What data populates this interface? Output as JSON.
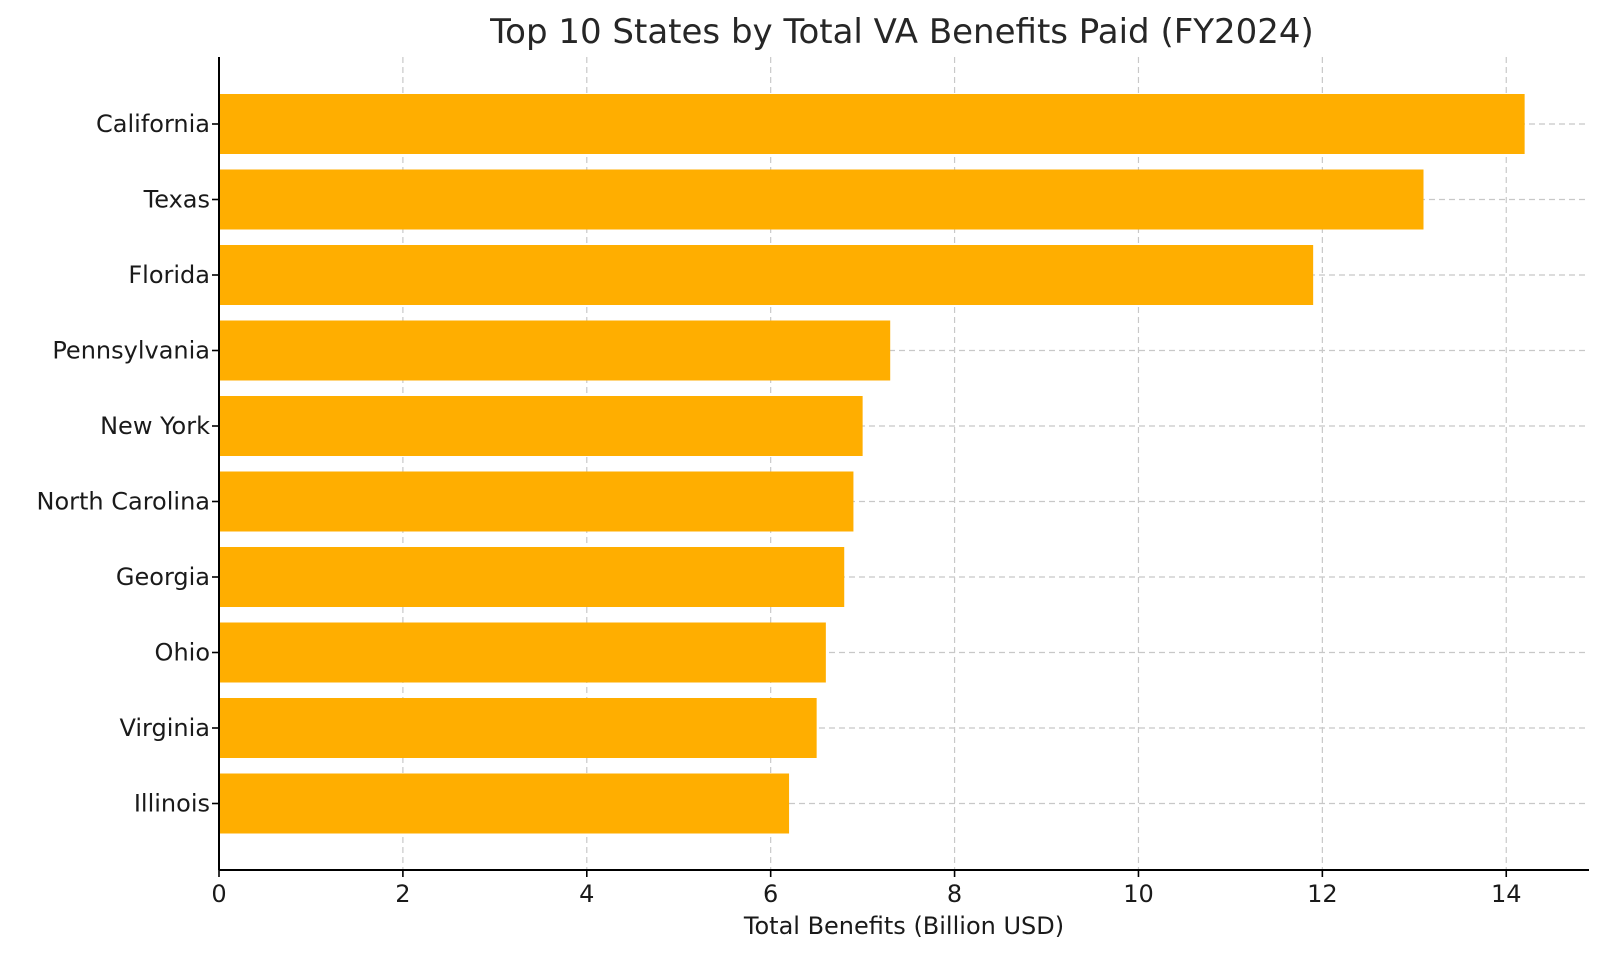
{
  "chart_data": {
    "type": "bar",
    "orientation": "horizontal",
    "title": "Top 10 States by Total VA Benefits Paid (FY2024)",
    "xlabel": "Total Benefits (Billion USD)",
    "ylabel": "",
    "categories": [
      "California",
      "Texas",
      "Florida",
      "Pennsylvania",
      "New York",
      "North Carolina",
      "Georgia",
      "Ohio",
      "Virginia",
      "Illinois"
    ],
    "values": [
      14.2,
      13.1,
      11.9,
      7.3,
      7.0,
      6.9,
      6.8,
      6.6,
      6.5,
      6.2
    ],
    "xlim": [
      0,
      14.9
    ],
    "xticks": [
      "0",
      "2",
      "4",
      "6",
      "8",
      "10",
      "12",
      "14"
    ],
    "grid": true,
    "bar_color": "#FFAE00"
  }
}
